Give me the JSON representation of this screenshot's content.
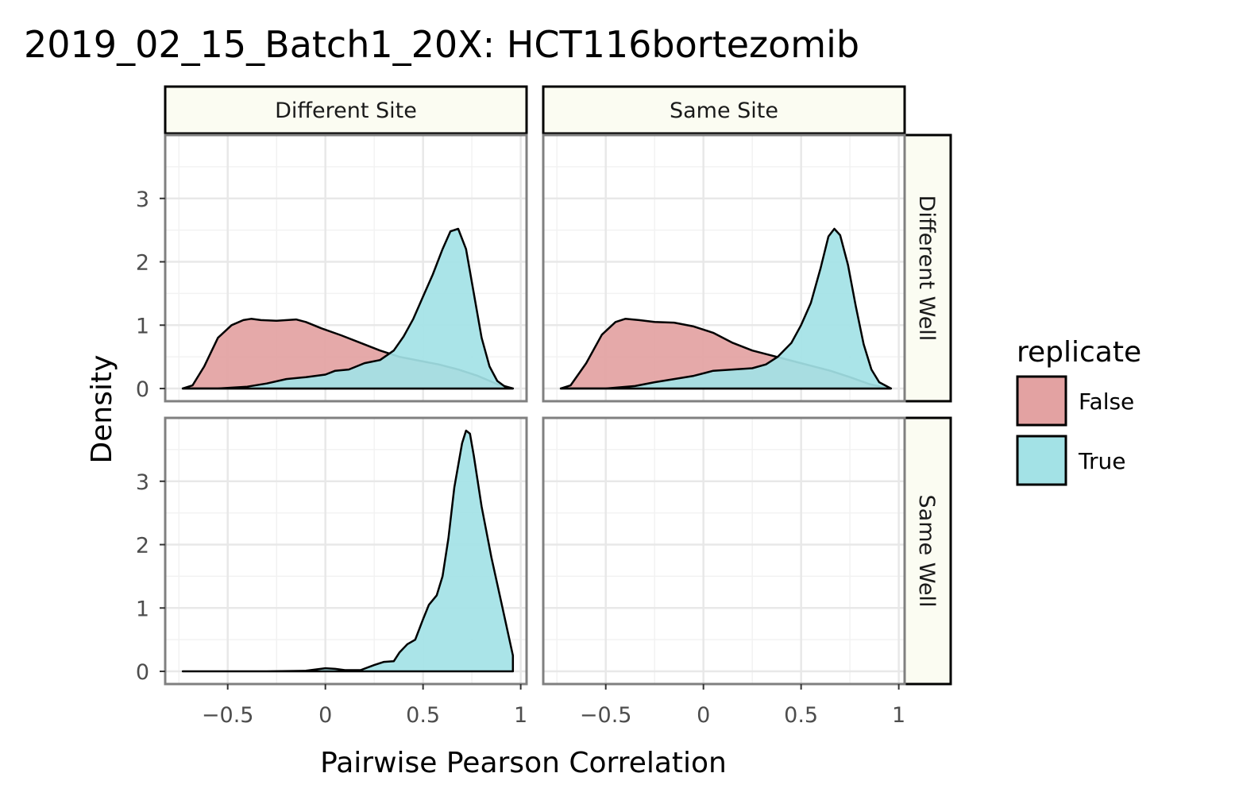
{
  "chart_data": {
    "type": "area",
    "subtype": "faceted-density",
    "title": "2019_02_15_Batch1_20X: HCT116bortezomib",
    "xlabel": "Pairwise Pearson Correlation",
    "ylabel": "Density",
    "xlim": [
      -0.82,
      1.03
    ],
    "ylim": [
      -0.2,
      4.0
    ],
    "x_ticks": [
      -0.5,
      0,
      0.5,
      1
    ],
    "x_tick_labels": [
      "−0.5",
      "0",
      "0.5",
      "1"
    ],
    "y_ticks": [
      0,
      1,
      2,
      3
    ],
    "y_tick_labels": [
      "0",
      "1",
      "2",
      "3"
    ],
    "grid": true,
    "legend": {
      "title": "replicate",
      "position": "right",
      "entries": [
        {
          "label": "False",
          "color": "#e3a2a2"
        },
        {
          "label": "True",
          "color": "#a3e2e6"
        }
      ]
    },
    "col_strips": [
      "Different Site",
      "Same Site"
    ],
    "row_strips": [
      "Different Well",
      "Same Well"
    ],
    "colors": {
      "false_fill": "#e3a2a2",
      "true_fill": "#a3e2e6",
      "strip_fill": "#fbfcf2",
      "grid": "#e8e8e8",
      "panel_border": "#808080"
    },
    "panels": [
      {
        "col": "Different Site",
        "row": "Different Well",
        "series": [
          {
            "name": "False",
            "x": [
              -0.73,
              -0.68,
              -0.62,
              -0.55,
              -0.48,
              -0.42,
              -0.38,
              -0.33,
              -0.25,
              -0.15,
              -0.1,
              -0.02,
              0.08,
              0.18,
              0.28,
              0.38,
              0.48,
              0.58,
              0.68,
              0.78,
              0.88,
              0.96
            ],
            "y": [
              0,
              0.05,
              0.35,
              0.8,
              1.0,
              1.08,
              1.1,
              1.08,
              1.07,
              1.09,
              1.05,
              0.95,
              0.84,
              0.72,
              0.6,
              0.5,
              0.44,
              0.38,
              0.3,
              0.2,
              0.07,
              0
            ]
          },
          {
            "name": "True",
            "x": [
              -0.73,
              -0.55,
              -0.4,
              -0.3,
              -0.2,
              -0.1,
              0,
              0.05,
              0.12,
              0.2,
              0.28,
              0.35,
              0.4,
              0.45,
              0.5,
              0.55,
              0.6,
              0.64,
              0.68,
              0.72,
              0.76,
              0.8,
              0.84,
              0.88,
              0.92,
              0.96
            ],
            "y": [
              0,
              0,
              0.03,
              0.08,
              0.15,
              0.18,
              0.22,
              0.28,
              0.3,
              0.4,
              0.45,
              0.6,
              0.82,
              1.1,
              1.45,
              1.8,
              2.2,
              2.48,
              2.52,
              2.2,
              1.5,
              0.8,
              0.35,
              0.12,
              0.03,
              0
            ]
          }
        ]
      },
      {
        "col": "Same Site",
        "row": "Different Well",
        "series": [
          {
            "name": "False",
            "x": [
              -0.73,
              -0.68,
              -0.6,
              -0.52,
              -0.45,
              -0.4,
              -0.33,
              -0.25,
              -0.15,
              -0.05,
              0.05,
              0.15,
              0.25,
              0.35,
              0.45,
              0.55,
              0.65,
              0.75,
              0.85,
              0.92,
              0.96
            ],
            "y": [
              0,
              0.05,
              0.4,
              0.85,
              1.05,
              1.1,
              1.08,
              1.05,
              1.04,
              0.98,
              0.88,
              0.72,
              0.6,
              0.52,
              0.44,
              0.36,
              0.28,
              0.18,
              0.07,
              0.02,
              0
            ]
          },
          {
            "name": "True",
            "x": [
              -0.73,
              -0.5,
              -0.35,
              -0.25,
              -0.15,
              -0.05,
              0.05,
              0.15,
              0.25,
              0.32,
              0.38,
              0.45,
              0.5,
              0.55,
              0.6,
              0.64,
              0.67,
              0.7,
              0.74,
              0.78,
              0.82,
              0.86,
              0.9,
              0.96
            ],
            "y": [
              0,
              0,
              0.04,
              0.1,
              0.15,
              0.2,
              0.28,
              0.3,
              0.32,
              0.38,
              0.5,
              0.72,
              1.0,
              1.35,
              1.9,
              2.4,
              2.52,
              2.42,
              1.95,
              1.3,
              0.7,
              0.3,
              0.1,
              0
            ]
          }
        ]
      },
      {
        "col": "Different Site",
        "row": "Same Well",
        "series": [
          {
            "name": "True",
            "x": [
              -0.73,
              -0.3,
              -0.1,
              0,
              0.05,
              0.1,
              0.18,
              0.25,
              0.3,
              0.35,
              0.38,
              0.42,
              0.46,
              0.5,
              0.53,
              0.57,
              0.6,
              0.63,
              0.66,
              0.7,
              0.72,
              0.74,
              0.76,
              0.8,
              0.85,
              0.9,
              0.96,
              0.96
            ],
            "y": [
              0,
              0,
              0.01,
              0.05,
              0.04,
              0.02,
              0.02,
              0.1,
              0.15,
              0.16,
              0.3,
              0.43,
              0.5,
              0.82,
              1.05,
              1.2,
              1.5,
              2.1,
              2.9,
              3.6,
              3.8,
              3.75,
              3.4,
              2.6,
              1.8,
              1.1,
              0.25,
              0
            ]
          }
        ]
      },
      {
        "col": "Same Site",
        "row": "Same Well",
        "series": []
      }
    ]
  }
}
